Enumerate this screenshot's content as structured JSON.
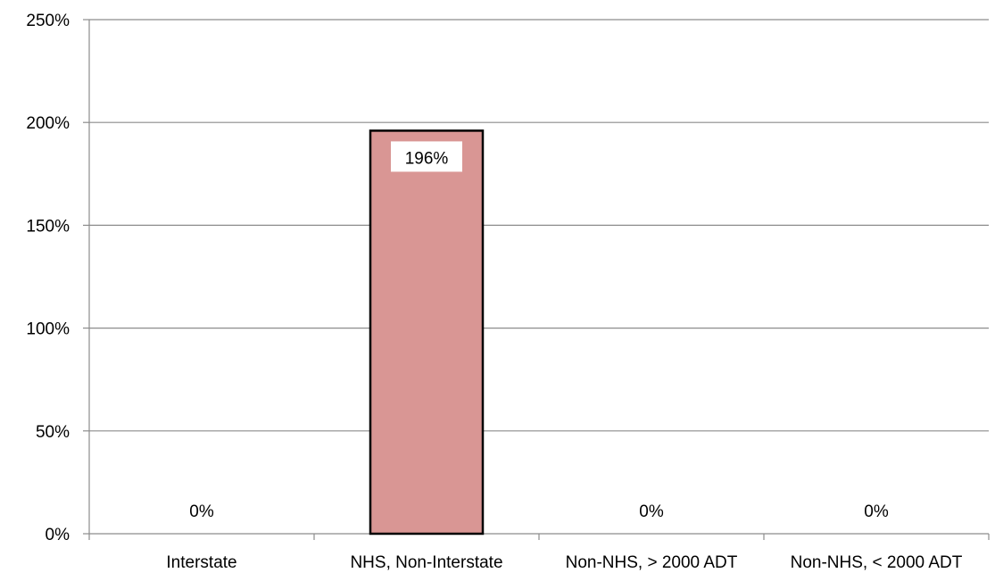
{
  "chart_data": {
    "type": "bar",
    "title": "",
    "xlabel": "",
    "ylabel": "",
    "categories": [
      "Interstate",
      "NHS, Non-Interstate",
      "Non-NHS, > 2000 ADT",
      "Non-NHS, < 2000 ADT"
    ],
    "values": [
      0,
      196,
      0,
      0
    ],
    "data_labels": [
      "0%",
      "196%",
      "0%",
      "0%"
    ],
    "ylim": [
      0,
      250
    ],
    "yticks": [
      0,
      50,
      100,
      150,
      200,
      250
    ],
    "ytick_labels": [
      "0%",
      "50%",
      "100%",
      "150%",
      "200%",
      "250%"
    ],
    "grid": true,
    "legend": "none",
    "colors": {
      "bar_fill": "#d99694",
      "bar_stroke": "#000000",
      "grid": "#8c8c8c",
      "axis": "#8c8c8c",
      "label_box": "#ffffff"
    }
  }
}
